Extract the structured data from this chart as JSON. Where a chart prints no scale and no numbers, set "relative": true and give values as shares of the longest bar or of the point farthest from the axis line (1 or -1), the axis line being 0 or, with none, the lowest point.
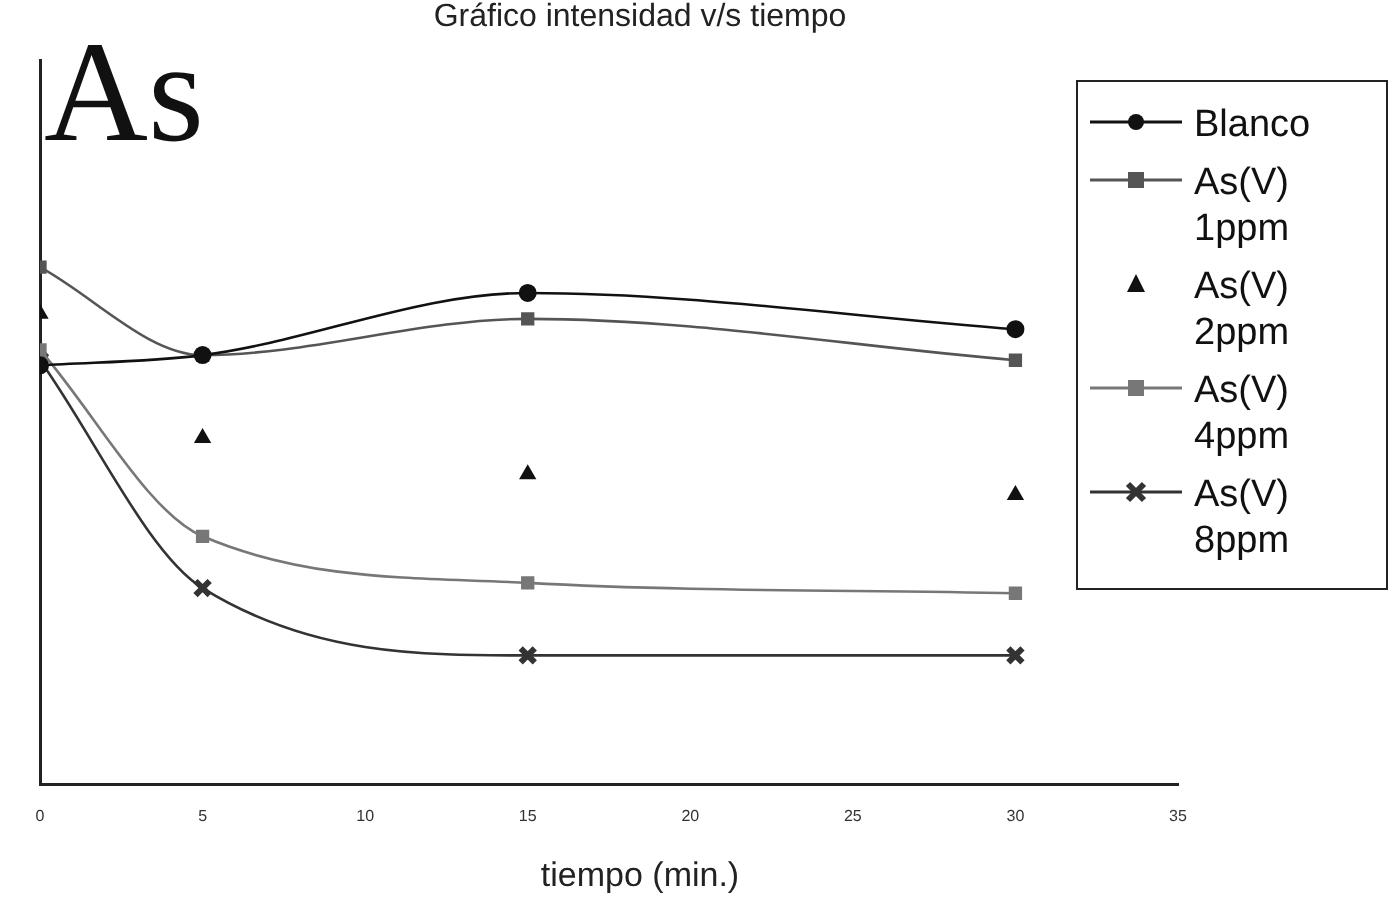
{
  "chart_data": {
    "type": "line",
    "title": "Gráfico intensidad v/s tiempo",
    "xlabel": "tiempo (min.)",
    "annotations": [
      "As"
    ],
    "relative": true,
    "tick_labels": "x",
    "grid": false,
    "legend": "top right",
    "x": [
      0,
      5,
      15,
      30
    ],
    "xlim": [
      0,
      35
    ],
    "xticks": [
      0,
      5,
      10,
      15,
      20,
      25,
      30,
      35
    ],
    "series": [
      {
        "name": "Blanco",
        "color": "#111111",
        "marker": "circle",
        "values": [
          0.81,
          0.83,
          0.95,
          0.88
        ]
      },
      {
        "name": "As(V) 1ppm",
        "color": "#555555",
        "marker": "square",
        "values": [
          1,
          0.83,
          0.9,
          0.82
        ]
      },
      {
        "name": "As(V) 2ppm",
        "type": "scatter",
        "color": "#111111",
        "marker": "triangle",
        "values": [
          0.91,
          0.67,
          0.6,
          0.56
        ]
      },
      {
        "name": "As(V) 4ppm",
        "color": "#777777",
        "marker": "square",
        "values": [
          0.84,
          0.48,
          0.39,
          0.37
        ]
      },
      {
        "name": "As(V) 8ppm",
        "color": "#333333",
        "marker": "cross",
        "values": [
          0.82,
          0.38,
          0.25,
          0.25
        ]
      }
    ]
  }
}
